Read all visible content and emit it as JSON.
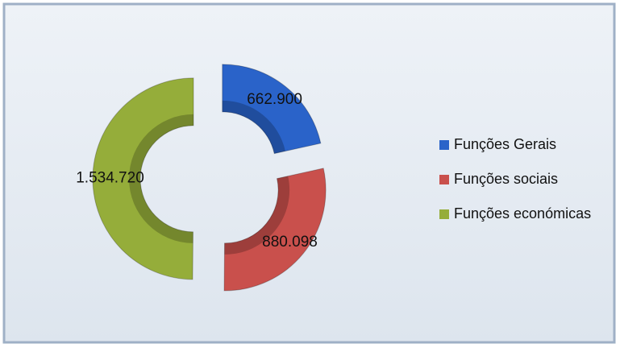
{
  "chart_data": {
    "type": "donut",
    "categories": [
      "Funções Gerais",
      "Funções sociais",
      "Funções económicas"
    ],
    "values": [
      662900,
      880098,
      1534720
    ],
    "value_labels": [
      "662.900",
      "880.098",
      "1.534.720"
    ],
    "colors": [
      "#2a63c9",
      "#c9504c",
      "#95ad3a"
    ],
    "legend": "right"
  }
}
